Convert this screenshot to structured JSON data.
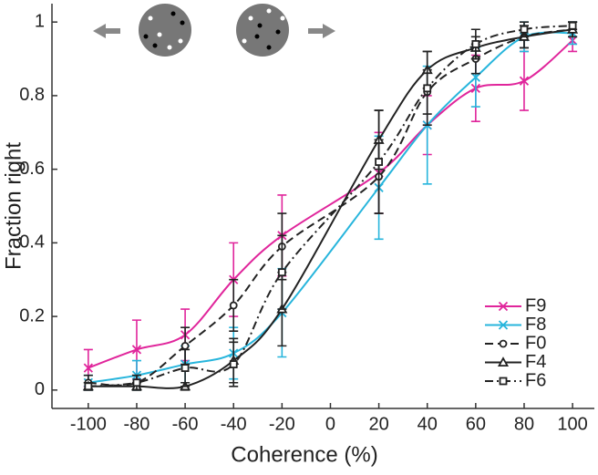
{
  "chart_data": {
    "type": "line",
    "x_label": "Coherence (%)",
    "y_label": "Fraction right",
    "x": [
      -100,
      -80,
      -60,
      -40,
      -20,
      20,
      40,
      60,
      80,
      100
    ],
    "xlim": [
      -115,
      109
    ],
    "ylim": [
      -0.05,
      1.05
    ],
    "xticks": [
      -100,
      -80,
      -60,
      -40,
      -20,
      0,
      20,
      40,
      60,
      80,
      100
    ],
    "yticks": [
      0,
      0.2,
      0.4,
      0.6,
      0.8,
      1
    ],
    "legend": "lower right",
    "series": [
      {
        "name": "F9",
        "color": "#e0259b",
        "marker": "x",
        "dash": "solid",
        "values": [
          0.06,
          0.11,
          0.15,
          0.3,
          0.42,
          0.59,
          0.72,
          0.82,
          0.84,
          0.95
        ],
        "errors": [
          0.05,
          0.08,
          0.07,
          0.1,
          0.11,
          0.11,
          0.08,
          0.09,
          0.08,
          0.03
        ]
      },
      {
        "name": "F8",
        "color": "#27b5dc",
        "marker": "x",
        "dash": "solid",
        "values": [
          0.02,
          0.04,
          0.07,
          0.1,
          0.21,
          0.55,
          0.72,
          0.85,
          0.96,
          0.97
        ],
        "errors": [
          0.02,
          0.04,
          0.05,
          0.07,
          0.12,
          0.14,
          0.16,
          0.08,
          0.04,
          0.03
        ]
      },
      {
        "name": "F0",
        "color": "#222222",
        "marker": "circle",
        "dash": "dashed",
        "values": [
          0.02,
          0.02,
          0.12,
          0.23,
          0.39,
          0.58,
          0.81,
          0.9,
          0.96,
          0.98
        ],
        "errors": [
          0.02,
          0.02,
          0.05,
          0.07,
          0.09,
          0.1,
          0.06,
          0.04,
          0.03,
          0.02
        ]
      },
      {
        "name": "F4",
        "color": "#222222",
        "marker": "triangle",
        "dash": "solid",
        "values": [
          0.01,
          0.01,
          0.01,
          0.08,
          0.22,
          0.68,
          0.87,
          0.93,
          0.96,
          0.98
        ],
        "errors": [
          0.01,
          0.01,
          0.01,
          0.06,
          0.1,
          0.08,
          0.05,
          0.03,
          0.03,
          0.02
        ]
      },
      {
        "name": "F6",
        "color": "#222222",
        "marker": "square",
        "dash": "dashdot",
        "values": [
          0.01,
          0.02,
          0.06,
          0.07,
          0.32,
          0.62,
          0.82,
          0.94,
          0.98,
          0.99
        ],
        "errors": [
          0.01,
          0.02,
          0.05,
          0.06,
          0.1,
          0.14,
          0.1,
          0.04,
          0.02,
          0.01
        ]
      }
    ]
  }
}
